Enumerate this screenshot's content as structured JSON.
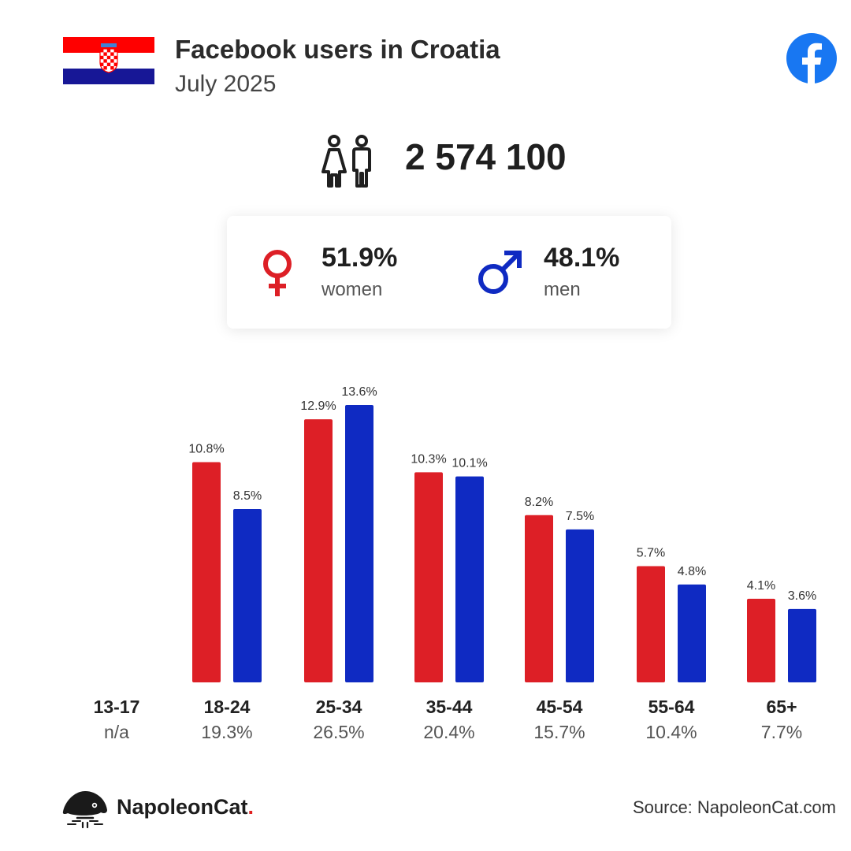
{
  "header": {
    "title": "Facebook users in Croatia",
    "subtitle": "July 2025",
    "flag_colors": [
      "#ff0000",
      "#ffffff",
      "#171796"
    ],
    "brand_icon": "facebook-icon",
    "brand_color": "#1877f2"
  },
  "total": {
    "value": "2 574 100",
    "icon": "people-icon"
  },
  "gender": {
    "women": {
      "pct": "51.9%",
      "label": "women",
      "icon": "female-symbol-icon",
      "color": "#dd1f26"
    },
    "men": {
      "pct": "48.1%",
      "label": "men",
      "icon": "male-symbol-icon",
      "color": "#0f2ac2"
    }
  },
  "chart_data": {
    "type": "bar",
    "categories": [
      "13-17",
      "18-24",
      "25-34",
      "35-44",
      "45-54",
      "55-64",
      "65+"
    ],
    "category_totals": [
      "n/a",
      "19.3%",
      "26.5%",
      "20.4%",
      "15.7%",
      "10.4%",
      "7.7%"
    ],
    "series": [
      {
        "name": "women",
        "color": "#dd1f26",
        "values": [
          null,
          10.8,
          12.9,
          10.3,
          8.2,
          5.7,
          4.1
        ],
        "labels": [
          "",
          "10.8%",
          "12.9%",
          "10.3%",
          "8.2%",
          "5.7%",
          "4.1%"
        ]
      },
      {
        "name": "men",
        "color": "#0f2ac2",
        "values": [
          null,
          8.5,
          13.6,
          10.1,
          7.5,
          4.8,
          3.6
        ],
        "labels": [
          "",
          "8.5%",
          "13.6%",
          "10.1%",
          "7.5%",
          "4.8%",
          "3.6%"
        ]
      }
    ],
    "ylim": [
      0,
      13.6
    ],
    "grid": false,
    "legend": "none"
  },
  "footer": {
    "brand_name": "NapoleonCat",
    "brand_dot": ".",
    "brand_icon": "napoleoncat-logo-icon",
    "source": "Source: NapoleonCat.com"
  }
}
